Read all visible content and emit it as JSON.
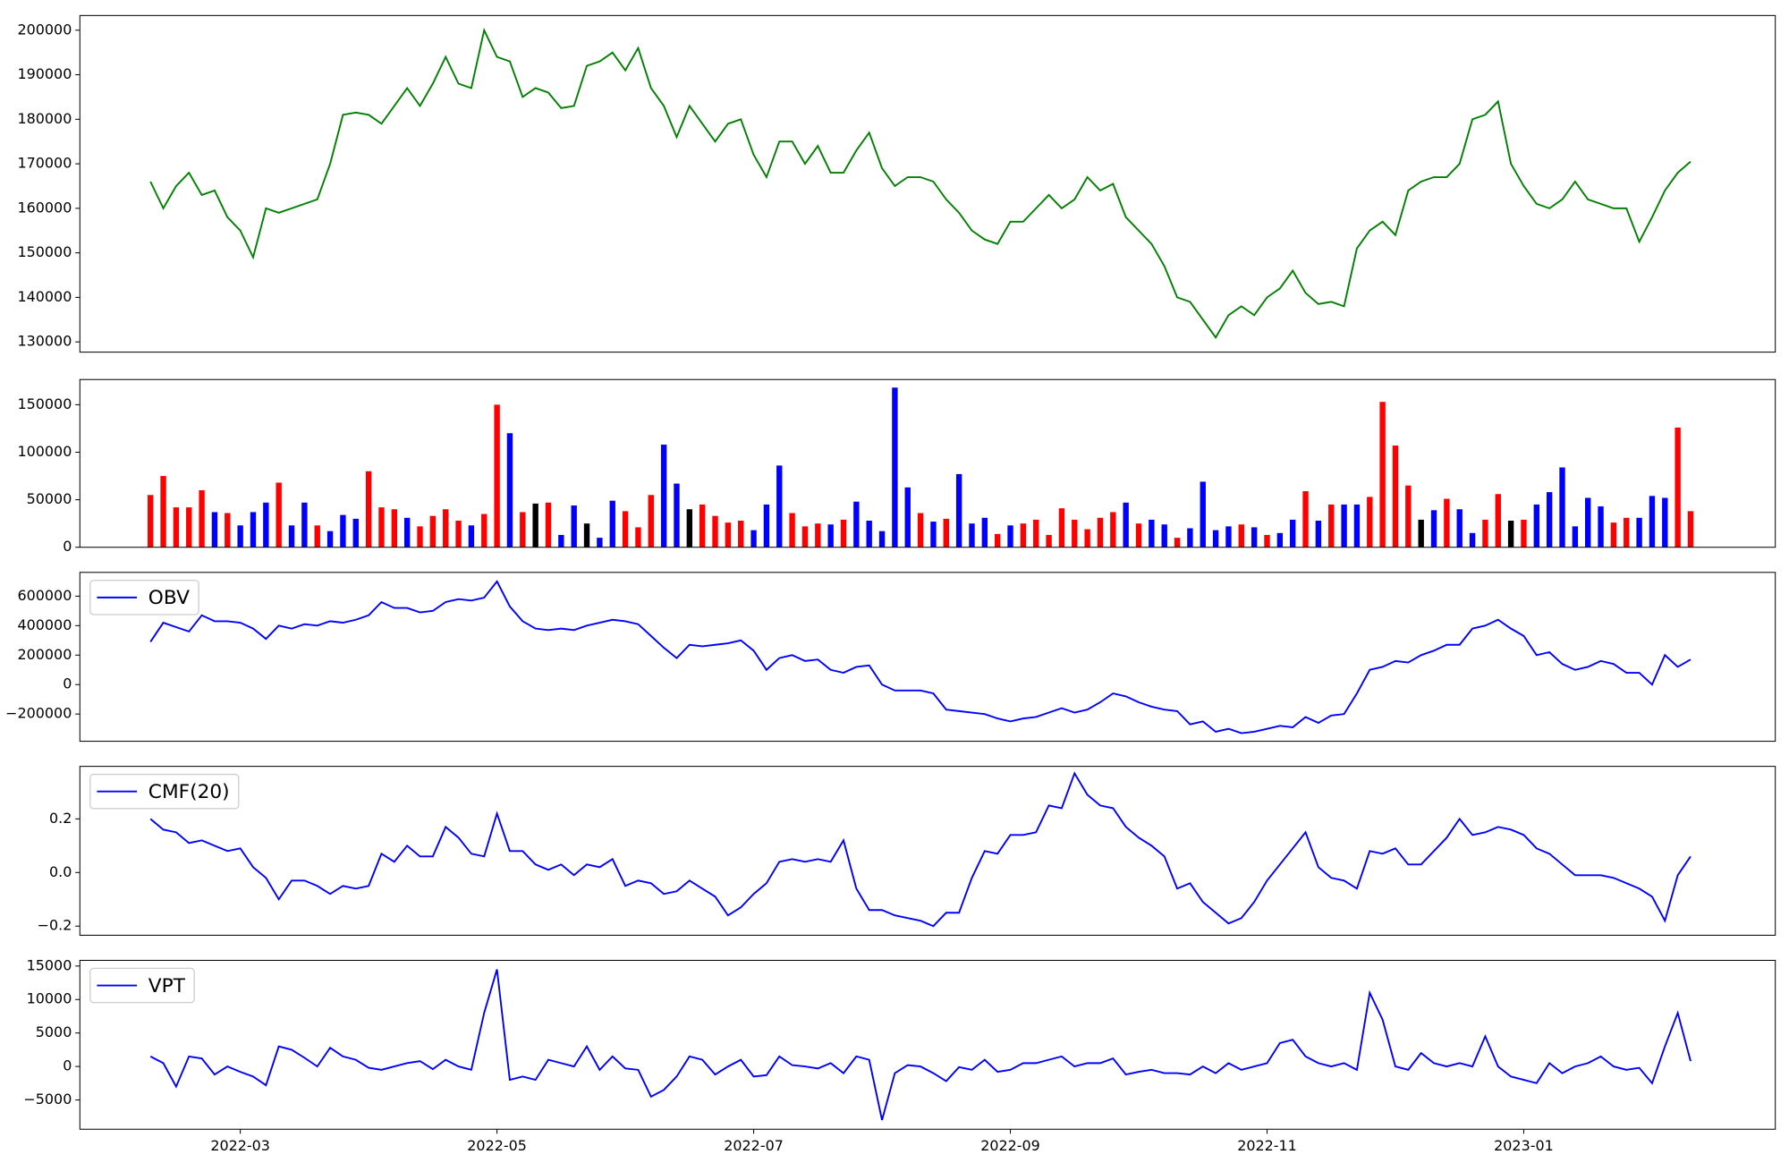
{
  "chart_data": {
    "type": "panels",
    "x": [
      2.3,
      2.4,
      2.5,
      2.6,
      2.7,
      2.8,
      2.9,
      3.0,
      3.1,
      3.2,
      3.3,
      3.4,
      3.5,
      3.6,
      3.7,
      3.8,
      3.9,
      4.0,
      4.1,
      4.2,
      4.3,
      4.4,
      4.5,
      4.6,
      4.7,
      4.8,
      4.9,
      5.0,
      5.1,
      5.2,
      5.3,
      5.4,
      5.5,
      5.6,
      5.7,
      5.8,
      5.9,
      6.0,
      6.1,
      6.2,
      6.3,
      6.4,
      6.5,
      6.6,
      6.7,
      6.8,
      6.9,
      7.0,
      7.1,
      7.2,
      7.3,
      7.4,
      7.5,
      7.6,
      7.7,
      7.8,
      7.9,
      8.0,
      8.1,
      8.2,
      8.3,
      8.4,
      8.5,
      8.6,
      8.7,
      8.8,
      8.9,
      9.0,
      9.1,
      9.2,
      9.3,
      9.4,
      9.5,
      9.6,
      9.7,
      9.8,
      9.9,
      10.0,
      10.1,
      10.2,
      10.3,
      10.4,
      10.5,
      10.6,
      10.7,
      10.8,
      10.9,
      11.0,
      11.1,
      11.2,
      11.3,
      11.4,
      11.5,
      11.6,
      11.7,
      11.8,
      11.9,
      12.0,
      12.1,
      12.2,
      12.3,
      12.4,
      12.5,
      12.6,
      12.7,
      12.8,
      12.9,
      13.0,
      13.1,
      13.2,
      13.3,
      13.4,
      13.5,
      13.6,
      13.7,
      13.8,
      13.9,
      14.0,
      14.1,
      14.2,
      14.3
    ],
    "xlim": [
      1.75,
      14.96
    ],
    "xticks": [
      {
        "value": 3,
        "label": "2022-03"
      },
      {
        "value": 5,
        "label": "2022-05"
      },
      {
        "value": 7,
        "label": "2022-07"
      },
      {
        "value": 9,
        "label": "2022-09"
      },
      {
        "value": 11,
        "label": "2022-11"
      },
      {
        "value": 13,
        "label": "2023-01"
      }
    ],
    "panels": [
      {
        "type": "line",
        "color": "green",
        "ylim": [
          127700,
          203300
        ],
        "yticks": [
          130000,
          140000,
          150000,
          160000,
          170000,
          180000,
          190000,
          200000
        ],
        "values": [
          166000,
          160000,
          165000,
          168000,
          163000,
          164000,
          158000,
          155000,
          149000,
          160000,
          159000,
          160000,
          161000,
          162000,
          170000,
          181000,
          181500,
          181000,
          179000,
          183000,
          187000,
          183000,
          188000,
          194000,
          188000,
          187000,
          200000,
          194000,
          193000,
          185000,
          187000,
          186000,
          182500,
          183000,
          192000,
          193000,
          195000,
          191000,
          196000,
          187000,
          183000,
          176000,
          183000,
          179000,
          175000,
          179000,
          180000,
          172000,
          167000,
          175000,
          175000,
          170000,
          174000,
          168000,
          168000,
          173000,
          177000,
          169000,
          165000,
          167000,
          167000,
          166000,
          162000,
          159000,
          155000,
          153000,
          152000,
          157000,
          157000,
          160000,
          163000,
          160000,
          162000,
          167000,
          164000,
          165500,
          158000,
          155000,
          152000,
          147000,
          140000,
          139000,
          135000,
          131000,
          136000,
          138000,
          136000,
          140000,
          142000,
          146000,
          141000,
          138500,
          139000,
          138000,
          151000,
          155000,
          157000,
          154000,
          164000,
          166000,
          167000,
          167000,
          170000,
          180000,
          181000,
          184000,
          170000,
          165000,
          161000,
          160000,
          162000,
          166000,
          162000,
          161000,
          160000,
          160000,
          152500,
          158000,
          164000,
          168000,
          170500
        ]
      },
      {
        "type": "bar",
        "ylim": [
          0,
          176500
        ],
        "yticks": [
          0,
          50000,
          100000,
          150000
        ],
        "values": [
          55000,
          75000,
          42000,
          42000,
          60000,
          37000,
          36000,
          23000,
          37000,
          47000,
          68000,
          23000,
          47000,
          23000,
          17000,
          34000,
          30000,
          80000,
          42000,
          40000,
          31000,
          22000,
          33000,
          40000,
          28000,
          23000,
          35000,
          150000,
          120000,
          37000,
          46000,
          47000,
          13000,
          44000,
          25000,
          10000,
          49000,
          38000,
          21000,
          55000,
          108000,
          67000,
          40000,
          45000,
          33000,
          26000,
          28000,
          18000,
          45000,
          86000,
          36000,
          22000,
          25000,
          24000,
          29000,
          48000,
          28000,
          17000,
          168000,
          63000,
          36000,
          27000,
          30000,
          77000,
          25000,
          31000,
          14000,
          23000,
          25000,
          29000,
          13000,
          41000,
          29000,
          19000,
          31000,
          37000,
          47000,
          25000,
          29000,
          24000,
          10000,
          20000,
          69000,
          18000,
          22000,
          24000,
          21000,
          13000,
          15000,
          29000,
          59000,
          28000,
          45000,
          45000,
          45000,
          53000,
          153000,
          107000,
          65000,
          29000,
          39000,
          51000,
          40000,
          15000,
          29000,
          56000,
          28000,
          29000,
          45000,
          58000,
          84000,
          22000,
          52000,
          43000,
          26000,
          31000,
          31000,
          54000,
          52000,
          126000,
          38000
        ],
        "colors": [
          "red",
          "red",
          "red",
          "red",
          "red",
          "blue",
          "red",
          "blue",
          "blue",
          "blue",
          "red",
          "blue",
          "blue",
          "red",
          "blue",
          "blue",
          "blue",
          "red",
          "red",
          "red",
          "blue",
          "red",
          "red",
          "red",
          "red",
          "blue",
          "red",
          "red",
          "blue",
          "red",
          "black",
          "red",
          "blue",
          "blue",
          "black",
          "blue",
          "blue",
          "red",
          "red",
          "red",
          "blue",
          "blue",
          "black",
          "red",
          "red",
          "red",
          "red",
          "blue",
          "blue",
          "blue",
          "red",
          "red",
          "red",
          "blue",
          "red",
          "blue",
          "blue",
          "blue",
          "blue",
          "blue",
          "red",
          "blue",
          "red",
          "blue",
          "blue",
          "blue",
          "red",
          "blue",
          "red",
          "red",
          "red",
          "red",
          "red",
          "red",
          "red",
          "red",
          "blue",
          "red",
          "blue",
          "blue",
          "red",
          "blue",
          "blue",
          "blue",
          "blue",
          "red",
          "blue",
          "red",
          "blue",
          "blue",
          "red",
          "blue",
          "red",
          "blue",
          "blue",
          "red",
          "red",
          "red",
          "red",
          "black",
          "blue",
          "red",
          "blue",
          "blue",
          "red",
          "red",
          "black",
          "red",
          "blue",
          "blue",
          "blue",
          "blue",
          "blue",
          "blue",
          "red",
          "red",
          "blue",
          "blue",
          "blue",
          "red",
          "red"
        ]
      },
      {
        "type": "line",
        "legend": "upper left",
        "ylim": [
          -384600,
          761500
        ],
        "yticks": [
          {
            "value": -200000,
            "label": "−200000"
          },
          0,
          200000,
          400000,
          600000
        ],
        "series": [
          {
            "name": "OBV",
            "color": "blue",
            "values": [
              290000,
              420000,
              390000,
              360000,
              470000,
              430000,
              430000,
              420000,
              380000,
              310000,
              400000,
              380000,
              410000,
              400000,
              430000,
              420000,
              440000,
              470000,
              560000,
              520000,
              520000,
              490000,
              500000,
              560000,
              580000,
              570000,
              590000,
              700000,
              530000,
              430000,
              380000,
              370000,
              380000,
              370000,
              400000,
              420000,
              440000,
              430000,
              410000,
              330000,
              250000,
              180000,
              270000,
              260000,
              270000,
              280000,
              300000,
              230000,
              100000,
              180000,
              200000,
              160000,
              170000,
              100000,
              80000,
              120000,
              130000,
              0,
              -40000,
              -40000,
              -40000,
              -60000,
              -170000,
              -180000,
              -190000,
              -200000,
              -230000,
              -250000,
              -230000,
              -220000,
              -190000,
              -160000,
              -190000,
              -170000,
              -120000,
              -60000,
              -80000,
              -120000,
              -150000,
              -170000,
              -180000,
              -270000,
              -250000,
              -320000,
              -300000,
              -330000,
              -320000,
              -300000,
              -280000,
              -290000,
              -220000,
              -260000,
              -210000,
              -200000,
              -60000,
              100000,
              120000,
              160000,
              150000,
              200000,
              230000,
              270000,
              270000,
              380000,
              400000,
              440000,
              380000,
              330000,
              200000,
              220000,
              140000,
              100000,
              120000,
              160000,
              140000,
              80000,
              80000,
              0,
              200000,
              120000,
              170000
            ]
          }
        ]
      },
      {
        "type": "line",
        "legend": "upper left",
        "ylim": [
          -0.234,
          0.396
        ],
        "yticks": [
          {
            "value": -0.2,
            "label": "−0.2"
          },
          {
            "value": 0,
            "label": "0.0"
          },
          0.2
        ],
        "series": [
          {
            "name": "CMF(20)",
            "color": "blue",
            "values": [
              0.2,
              0.16,
              0.15,
              0.11,
              0.12,
              0.1,
              0.08,
              0.09,
              0.02,
              -0.02,
              -0.1,
              -0.03,
              -0.03,
              -0.05,
              -0.08,
              -0.05,
              -0.06,
              -0.05,
              0.07,
              0.04,
              0.1,
              0.06,
              0.06,
              0.17,
              0.13,
              0.07,
              0.06,
              0.22,
              0.08,
              0.08,
              0.03,
              0.01,
              0.03,
              -0.01,
              0.03,
              0.02,
              0.05,
              -0.05,
              -0.03,
              -0.04,
              -0.08,
              -0.07,
              -0.03,
              -0.06,
              -0.09,
              -0.16,
              -0.13,
              -0.08,
              -0.04,
              0.04,
              0.05,
              0.04,
              0.05,
              0.04,
              0.12,
              -0.06,
              -0.14,
              -0.14,
              -0.16,
              -0.17,
              -0.18,
              -0.2,
              -0.15,
              -0.15,
              -0.02,
              0.08,
              0.07,
              0.14,
              0.14,
              0.15,
              0.25,
              0.24,
              0.37,
              0.29,
              0.25,
              0.24,
              0.17,
              0.13,
              0.1,
              0.06,
              -0.06,
              -0.04,
              -0.11,
              -0.15,
              -0.19,
              -0.17,
              -0.11,
              -0.03,
              0.03,
              0.09,
              0.15,
              0.02,
              -0.02,
              -0.03,
              -0.06,
              0.08,
              0.07,
              0.09,
              0.03,
              0.03,
              0.08,
              0.13,
              0.2,
              0.14,
              0.15,
              0.17,
              0.16,
              0.14,
              0.09,
              0.07,
              0.03,
              -0.01,
              -0.01,
              -0.01,
              -0.02,
              -0.04,
              -0.06,
              -0.09,
              -0.18,
              -0.01,
              0.06
            ]
          }
        ]
      },
      {
        "type": "line",
        "legend": "upper left",
        "ylim": [
          -9370,
          15850
        ],
        "yticks": [
          {
            "value": -5000,
            "label": "−5000"
          },
          0,
          5000,
          10000,
          15000
        ],
        "series": [
          {
            "name": "VPT",
            "color": "blue",
            "values": [
              1500,
              500,
              -3000,
              1500,
              1200,
              -1200,
              0,
              -800,
              -1500,
              -2800,
              3000,
              2500,
              1300,
              0,
              2800,
              1500,
              1000,
              -200,
              -500,
              0,
              500,
              800,
              -400,
              1000,
              0,
              -500,
              8000,
              14500,
              -2000,
              -1500,
              -2000,
              1000,
              500,
              0,
              3000,
              -500,
              1500,
              -300,
              -500,
              -4500,
              -3500,
              -1500,
              1500,
              1000,
              -1200,
              0,
              1000,
              -1500,
              -1300,
              1500,
              200,
              0,
              -300,
              500,
              -1000,
              1500,
              1000,
              -8000,
              -1000,
              200,
              0,
              -1000,
              -2200,
              -100,
              -500,
              1000,
              -800,
              -500,
              500,
              500,
              1000,
              1500,
              0,
              500,
              500,
              1200,
              -1200,
              -800,
              -500,
              -1000,
              -1000,
              -1200,
              0,
              -1000,
              500,
              -500,
              0,
              500,
              3500,
              4000,
              1500,
              500,
              0,
              500,
              -500,
              11000,
              7000,
              0,
              -500,
              2000,
              500,
              0,
              500,
              0,
              4500,
              0,
              -1500,
              -2000,
              -2500,
              500,
              -1000,
              0,
              500,
              1500,
              0,
              -500,
              -200,
              -2500,
              3000,
              8000,
              800
            ]
          }
        ]
      }
    ]
  }
}
